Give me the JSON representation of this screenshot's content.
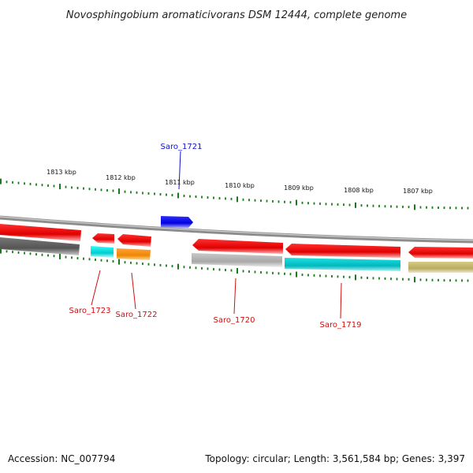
{
  "title": "Novosphingobium aromaticivorans DSM 12444, complete genome",
  "accession": "Accession: NC_007794",
  "summary": "Topology: circular; Length: 3,561,584 bp; Genes: 3,397",
  "colors": {
    "tick": "#1a7a1a",
    "backbone": "#8a8a8a",
    "forward_label": "#1010cc",
    "reverse_label": "#cc1010"
  },
  "ticks": [
    {
      "label": "1813 kbp"
    },
    {
      "label": "1812 kbp"
    },
    {
      "label": "1811 kbp"
    },
    {
      "label": "1810 kbp"
    },
    {
      "label": "1809 kbp"
    },
    {
      "label": "1808 kbp"
    },
    {
      "label": "1807 kbp"
    }
  ],
  "genes": [
    {
      "label": "Saro_1721",
      "strand": "forward",
      "color": "#1010e0"
    },
    {
      "label": "Saro_1723",
      "strand": "reverse",
      "color": "#e00000"
    },
    {
      "label": "Saro_1722",
      "strand": "reverse",
      "color": "#e00000"
    },
    {
      "label": "Saro_1720",
      "strand": "reverse",
      "color": "#e00000"
    },
    {
      "label": "Saro_1719",
      "strand": "reverse",
      "color": "#e00000"
    }
  ]
}
